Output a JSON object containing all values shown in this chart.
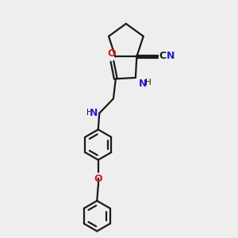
{
  "bg_color": "#eeeeee",
  "bond_color": "#1a1a1a",
  "N_color": "#2222cc",
  "O_color": "#cc2222",
  "line_width": 1.6,
  "font_size": 9.0,
  "font_size_small": 7.5,
  "figsize": [
    3.0,
    3.0
  ],
  "dpi": 100,
  "xlim": [
    0,
    10
  ],
  "ylim": [
    0,
    10
  ]
}
